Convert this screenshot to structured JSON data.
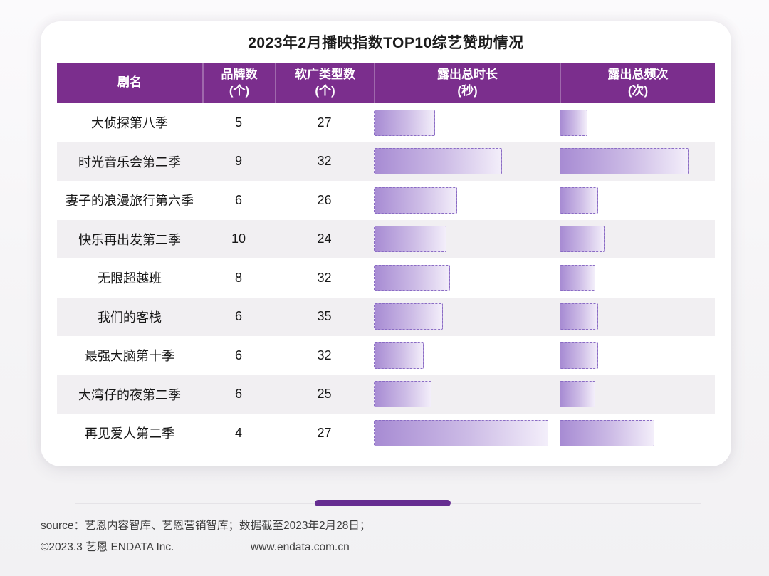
{
  "header": {
    "title": "2023年2月播映指数TOP10综艺赞助情况"
  },
  "table": {
    "columns": [
      {
        "label": "剧名",
        "sub": ""
      },
      {
        "label": "品牌数",
        "sub": "(个)"
      },
      {
        "label": "软广类型数",
        "sub": "(个)"
      },
      {
        "label": "露出总时长",
        "sub": "(秒)"
      },
      {
        "label": "露出总频次",
        "sub": "(次)"
      }
    ]
  },
  "footer": {
    "source_line": "source：艺恩内容智库、艺恩营销智库；数据截至2023年2月28日；",
    "copyright": "©2023.3 艺恩 ENDATA Inc.",
    "website": "www.endata.com.cn"
  },
  "colors": {
    "header_bg": "#7b2e8d",
    "alt_row_bg": "#f1eff2",
    "bar_gradient_start": "#a78bd3",
    "bar_gradient_end": "#f3eefa",
    "bar_border": "#8a6cc4",
    "accent_pill": "#662d91",
    "title_text": "#1c1c1c"
  },
  "chart_data": {
    "type": "table",
    "title": "2023年2月播映指数TOP10综艺赞助情况",
    "columns": [
      "剧名",
      "品牌数(个)",
      "软广类型数(个)",
      "露出总时长(秒)",
      "露出总频次(次)"
    ],
    "legend_position": "none",
    "grid": false,
    "rows": [
      {
        "name": "大侦探第八季",
        "brands": 5,
        "soft_ad_types": 27,
        "duration_bar_pct": 33,
        "frequency_bar_pct": 18
      },
      {
        "name": "时光音乐会第二季",
        "brands": 9,
        "soft_ad_types": 32,
        "duration_bar_pct": 69,
        "frequency_bar_pct": 83
      },
      {
        "name": "妻子的浪漫旅行第六季",
        "brands": 6,
        "soft_ad_types": 26,
        "duration_bar_pct": 45,
        "frequency_bar_pct": 25
      },
      {
        "name": "快乐再出发第二季",
        "brands": 10,
        "soft_ad_types": 24,
        "duration_bar_pct": 39,
        "frequency_bar_pct": 29
      },
      {
        "name": "无限超越班",
        "brands": 8,
        "soft_ad_types": 32,
        "duration_bar_pct": 41,
        "frequency_bar_pct": 23
      },
      {
        "name": "我们的客栈",
        "brands": 6,
        "soft_ad_types": 35,
        "duration_bar_pct": 37,
        "frequency_bar_pct": 25
      },
      {
        "name": "最强大脑第十季",
        "brands": 6,
        "soft_ad_types": 32,
        "duration_bar_pct": 27,
        "frequency_bar_pct": 25
      },
      {
        "name": "大湾仔的夜第二季",
        "brands": 6,
        "soft_ad_types": 25,
        "duration_bar_pct": 31,
        "frequency_bar_pct": 23
      },
      {
        "name": "再见爱人第二季",
        "brands": 4,
        "soft_ad_types": 27,
        "duration_bar_pct": 94,
        "frequency_bar_pct": 61
      }
    ]
  }
}
